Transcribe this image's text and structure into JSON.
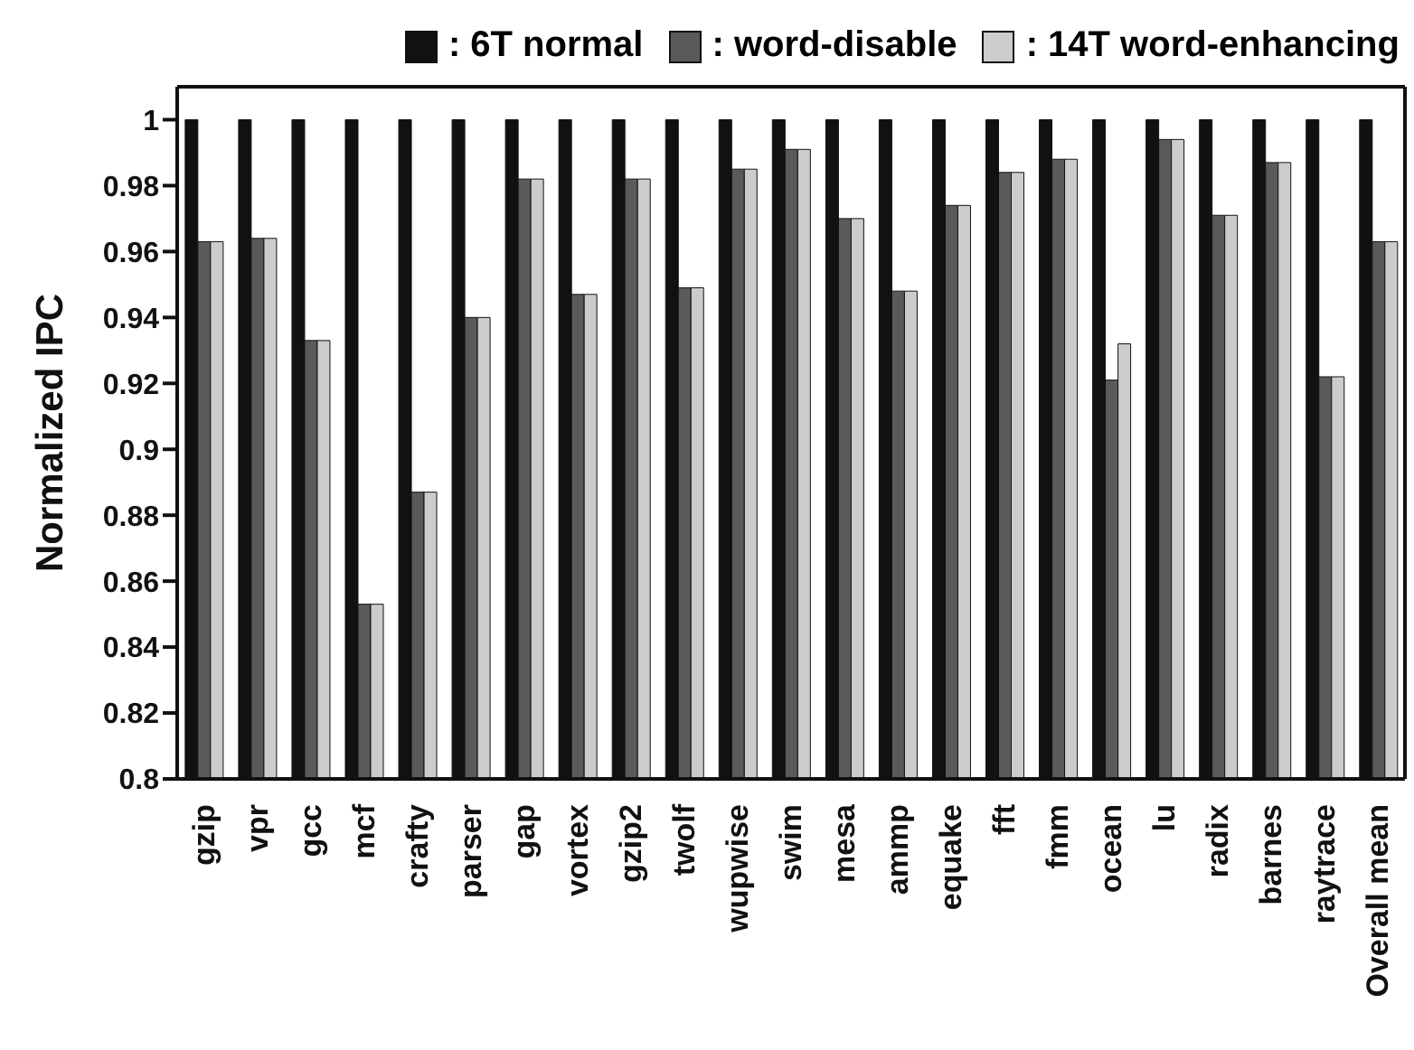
{
  "chart_data": {
    "type": "bar",
    "ylabel": "Normalized IPC",
    "categories": [
      "gzip",
      "vpr",
      "gcc",
      "mcf",
      "crafty",
      "parser",
      "gap",
      "vortex",
      "gzip2",
      "twolf",
      "wupwise",
      "swim",
      "mesa",
      "ammp",
      "equake",
      "fft",
      "fmm",
      "ocean",
      "lu",
      "radix",
      "barnes",
      "raytrace",
      "Overall mean"
    ],
    "series": [
      {
        "name": ": 6T normal",
        "color": "#111111",
        "values": [
          1,
          1,
          1,
          1,
          1,
          1,
          1,
          1,
          1,
          1,
          1,
          1,
          1,
          1,
          1,
          1,
          1,
          1,
          1,
          1,
          1,
          1,
          1
        ]
      },
      {
        "name": ": word-disable",
        "color": "#5a5a5a",
        "values": [
          0.963,
          0.964,
          0.933,
          0.853,
          0.887,
          0.94,
          0.982,
          0.947,
          0.982,
          0.949,
          0.985,
          0.991,
          0.97,
          0.948,
          0.974,
          0.984,
          0.988,
          0.921,
          0.994,
          0.971,
          0.987,
          0.922,
          0.963
        ]
      },
      {
        "name": ": 14T word-enhancing",
        "color": "#cccccc",
        "values": [
          0.963,
          0.964,
          0.933,
          0.853,
          0.887,
          0.94,
          0.982,
          0.947,
          0.982,
          0.949,
          0.985,
          0.991,
          0.97,
          0.948,
          0.974,
          0.984,
          0.988,
          0.932,
          0.994,
          0.971,
          0.987,
          0.922,
          0.963
        ]
      }
    ],
    "ylim": [
      0.8,
      1.01
    ],
    "yticks": [
      0.8,
      0.82,
      0.84,
      0.86,
      0.88,
      0.9,
      0.92,
      0.94,
      0.96,
      0.98,
      1
    ],
    "grid": false,
    "legend": "top"
  }
}
